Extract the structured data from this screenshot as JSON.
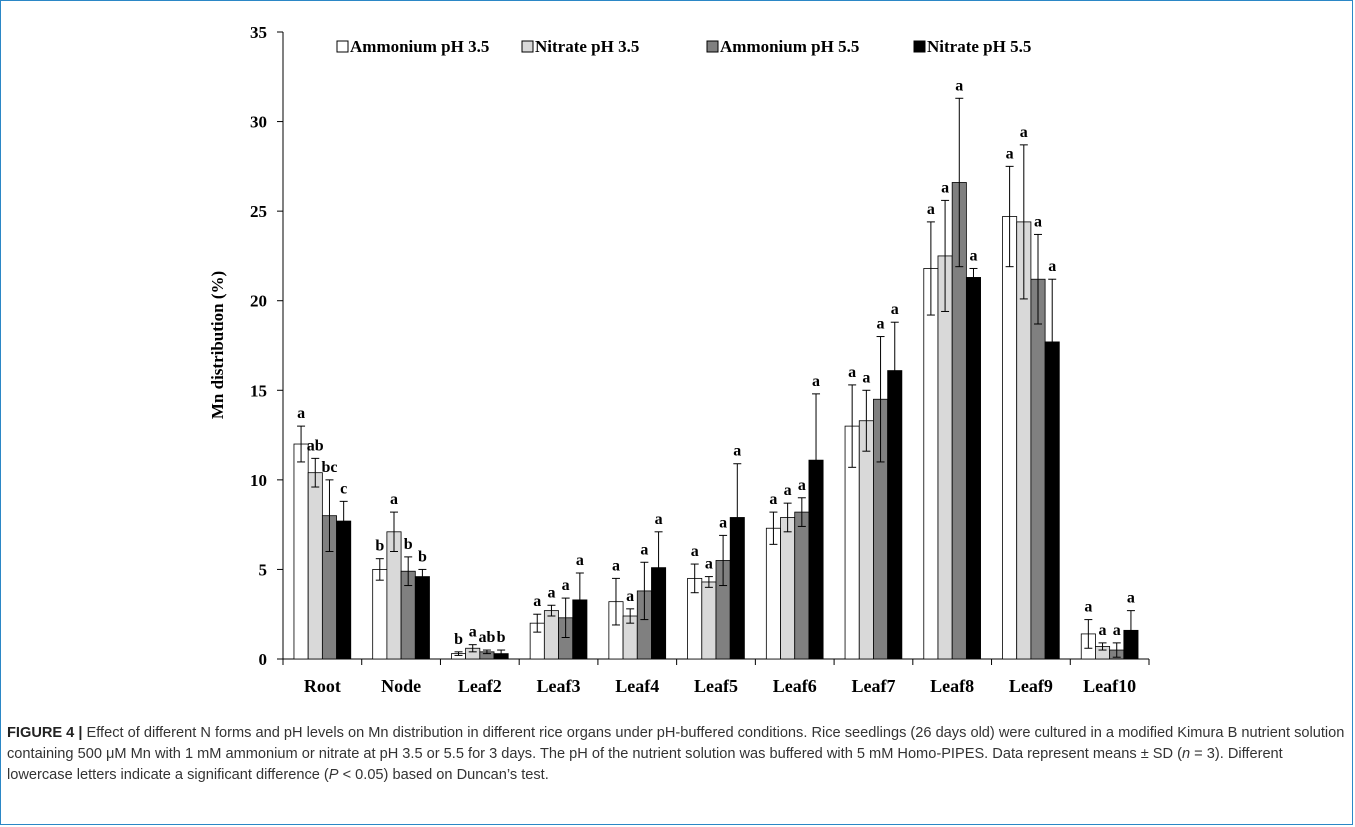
{
  "chart_data": {
    "type": "bar",
    "title": "",
    "xlabel": "",
    "ylabel": "Mn distribution  (%)",
    "ylim": [
      0,
      35
    ],
    "yticks": [
      0,
      5,
      10,
      15,
      20,
      25,
      30,
      35
    ],
    "grid": false,
    "legend_position": "top",
    "categories": [
      "Root",
      "Node",
      "Leaf2",
      "Leaf3",
      "Leaf4",
      "Leaf5",
      "Leaf6",
      "Leaf7",
      "Leaf8",
      "Leaf9",
      "Leaf10"
    ],
    "series": [
      {
        "name": "Ammonium pH 3.5",
        "color": "#ffffff",
        "values": [
          12.0,
          5.0,
          0.3,
          2.0,
          3.2,
          4.5,
          7.3,
          13.0,
          21.8,
          24.7,
          1.4
        ],
        "sd": [
          1.0,
          0.6,
          0.1,
          0.5,
          1.3,
          0.8,
          0.9,
          2.3,
          2.6,
          2.8,
          0.8
        ],
        "letters": [
          "a",
          "b",
          "b",
          "a",
          "a",
          "a",
          "a",
          "a",
          "a",
          "a",
          "a"
        ]
      },
      {
        "name": "Nitrate pH 3.5",
        "color": "#d9d9d9",
        "values": [
          10.4,
          7.1,
          0.6,
          2.7,
          2.4,
          4.3,
          7.9,
          13.3,
          22.5,
          24.4,
          0.7
        ],
        "sd": [
          0.8,
          1.1,
          0.2,
          0.3,
          0.4,
          0.3,
          0.8,
          1.7,
          3.1,
          4.3,
          0.2
        ],
        "letters": [
          "ab",
          "a",
          "a",
          "a",
          "a",
          "a",
          "a",
          "a",
          "a",
          "a",
          "a"
        ]
      },
      {
        "name": "Ammonium pH 5.5",
        "color": "#808080",
        "values": [
          8.0,
          4.9,
          0.4,
          2.3,
          3.8,
          5.5,
          8.2,
          14.5,
          26.6,
          21.2,
          0.5
        ],
        "sd": [
          2.0,
          0.8,
          0.1,
          1.1,
          1.6,
          1.4,
          0.8,
          3.5,
          4.7,
          2.5,
          0.4
        ],
        "letters": [
          "bc",
          "b",
          "ab",
          "a",
          "a",
          "a",
          "a",
          "a",
          "a",
          "a",
          "a"
        ]
      },
      {
        "name": "Nitrate pH 5.5",
        "color": "#000000",
        "values": [
          7.7,
          4.6,
          0.3,
          3.3,
          5.1,
          7.9,
          11.1,
          16.1,
          21.3,
          17.7,
          1.6
        ],
        "sd": [
          1.1,
          0.4,
          0.2,
          1.5,
          2.0,
          3.0,
          3.7,
          2.7,
          0.5,
          3.5,
          1.1
        ],
        "letters": [
          "c",
          "b",
          "b",
          "a",
          "a",
          "a",
          "a",
          "a",
          "a",
          "a",
          "a"
        ]
      }
    ]
  },
  "caption": {
    "label": "FIGURE 4 |",
    "part1": " Effect of different N forms and pH levels on Mn distribution in different rice organs under pH-buffered conditions. Rice seedlings (26 days old) were cultured in a modified Kimura B nutrient solution containing 500 μM Mn with 1 mM ammonium or nitrate at pH 3.5 or 5.5 for 3 days. The pH of the nutrient solution was buffered with 5 mM Homo-PIPES. Data represent means ± SD (",
    "n_italic": "n",
    "part2": " = 3). Different lowercase letters indicate a significant difference (",
    "p_italic": "P",
    "part3": " < 0.05) based on Duncan’s test."
  }
}
